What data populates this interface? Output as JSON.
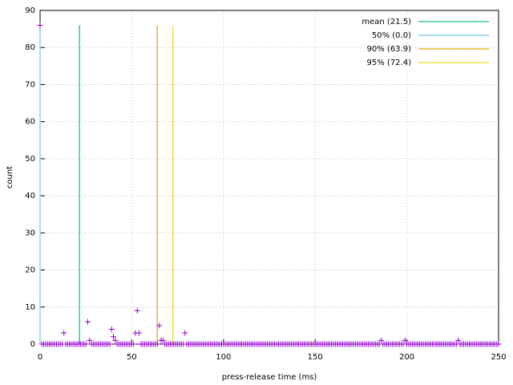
{
  "chart_data": {
    "type": "scatter",
    "xlabel": "press-release time (ms)",
    "ylabel": "count",
    "xlim": [
      0,
      250
    ],
    "xticks": [
      0,
      50,
      100,
      150,
      200,
      250
    ],
    "ylim": [
      0,
      90
    ],
    "yticks": [
      0,
      10,
      20,
      30,
      40,
      50,
      60,
      70,
      80,
      90
    ],
    "grid": true,
    "legend": "top-right",
    "series": [
      {
        "color": "#9400d3",
        "x": [
          0,
          1,
          2,
          3,
          4,
          5,
          6,
          7,
          8,
          9,
          10,
          11,
          12,
          13,
          14,
          15,
          16,
          17,
          18,
          19,
          20,
          21,
          22,
          23,
          24,
          25,
          26,
          27,
          28,
          29,
          30,
          31,
          32,
          33,
          34,
          35,
          36,
          37,
          38,
          39,
          40,
          41,
          42,
          43,
          44,
          45,
          46,
          47,
          48,
          49,
          50,
          51,
          52,
          53,
          54,
          55,
          56,
          57,
          58,
          59,
          60,
          61,
          62,
          63,
          64,
          65,
          66,
          67,
          68,
          69,
          70,
          71,
          72,
          73,
          74,
          75,
          76,
          77,
          78,
          79,
          80,
          81,
          82,
          83,
          84,
          85,
          86,
          87,
          88,
          89,
          90,
          91,
          92,
          93,
          94,
          95,
          96,
          97,
          98,
          99,
          100,
          101,
          102,
          103,
          104,
          105,
          106,
          107,
          108,
          109,
          110,
          111,
          112,
          113,
          114,
          115,
          116,
          117,
          118,
          119,
          120,
          121,
          122,
          123,
          124,
          125,
          126,
          127,
          128,
          129,
          130,
          131,
          132,
          133,
          134,
          135,
          136,
          137,
          138,
          139,
          140,
          141,
          142,
          143,
          144,
          145,
          146,
          147,
          148,
          149,
          150,
          151,
          152,
          153,
          154,
          155,
          156,
          157,
          158,
          159,
          160,
          161,
          162,
          163,
          164,
          165,
          166,
          167,
          168,
          169,
          170,
          171,
          172,
          173,
          174,
          175,
          176,
          177,
          178,
          179,
          180,
          181,
          182,
          183,
          184,
          185,
          186,
          187,
          188,
          189,
          190,
          191,
          192,
          193,
          194,
          195,
          196,
          197,
          198,
          199,
          200,
          201,
          202,
          203,
          204,
          205,
          206,
          207,
          208,
          209,
          210,
          211,
          212,
          213,
          214,
          215,
          216,
          217,
          218,
          219,
          220,
          221,
          222,
          223,
          224,
          225,
          226,
          227,
          228,
          229,
          230,
          231,
          232,
          233,
          234,
          235,
          236,
          237,
          238,
          239,
          240,
          241,
          242,
          243,
          244,
          245,
          246,
          247,
          248,
          249,
          250
        ],
        "values": [
          86,
          0,
          0,
          0,
          0,
          0,
          0,
          0,
          0,
          0,
          0,
          0,
          0,
          3,
          0,
          0,
          0,
          0,
          0,
          0,
          0,
          0,
          0,
          0,
          0,
          0,
          6,
          1,
          0,
          0,
          0,
          0,
          0,
          0,
          0,
          0,
          0,
          0,
          0,
          4,
          2,
          1,
          0,
          0,
          0,
          0,
          0,
          0,
          0,
          0,
          0,
          0,
          3,
          9,
          3,
          0,
          0,
          0,
          0,
          0,
          0,
          0,
          0,
          0,
          0,
          5,
          1,
          1,
          0,
          0,
          0,
          0,
          0,
          0,
          0,
          0,
          0,
          0,
          0,
          3,
          0,
          0,
          0,
          0,
          0,
          0,
          0,
          0,
          0,
          0,
          0,
          0,
          0,
          0,
          0,
          0,
          0,
          0,
          0,
          0,
          0,
          0,
          0,
          0,
          0,
          0,
          0,
          0,
          0,
          0,
          0,
          0,
          0,
          0,
          0,
          0,
          0,
          0,
          0,
          0,
          0,
          0,
          0,
          0,
          0,
          0,
          0,
          0,
          0,
          0,
          0,
          0,
          0,
          0,
          0,
          0,
          0,
          0,
          0,
          0,
          0,
          0,
          0,
          0,
          0,
          0,
          0,
          0,
          0,
          0,
          0,
          0,
          0,
          0,
          0,
          0,
          0,
          0,
          0,
          0,
          0,
          0,
          0,
          0,
          0,
          0,
          0,
          0,
          0,
          0,
          0,
          0,
          0,
          0,
          0,
          0,
          0,
          0,
          0,
          0,
          0,
          0,
          0,
          0,
          0,
          0,
          1,
          0,
          0,
          0,
          0,
          0,
          0,
          0,
          0,
          0,
          0,
          0,
          0,
          1,
          0,
          0,
          0,
          0,
          0,
          0,
          0,
          0,
          0,
          0,
          0,
          0,
          0,
          0,
          0,
          0,
          0,
          0,
          0,
          0,
          0,
          0,
          0,
          0,
          0,
          0,
          0,
          0,
          1,
          0,
          0,
          0,
          0,
          0,
          0,
          0,
          0,
          0,
          0,
          0,
          0,
          0,
          0,
          0,
          0,
          0,
          0,
          0,
          0,
          0,
          0
        ]
      }
    ],
    "markers": [
      {
        "name": "mean (21.5)",
        "x": 21.5,
        "height": 86,
        "color": "#3cc89c"
      },
      {
        "name": "50% (0.0)",
        "x": 0,
        "height": 86,
        "color": "#8fd0ec"
      },
      {
        "name": "90% (63.9)",
        "x": 63.9,
        "height": 86,
        "color": "#e8b830"
      },
      {
        "name": "95% (72.4)",
        "x": 72.4,
        "height": 86,
        "color": "#f0e040"
      }
    ]
  }
}
